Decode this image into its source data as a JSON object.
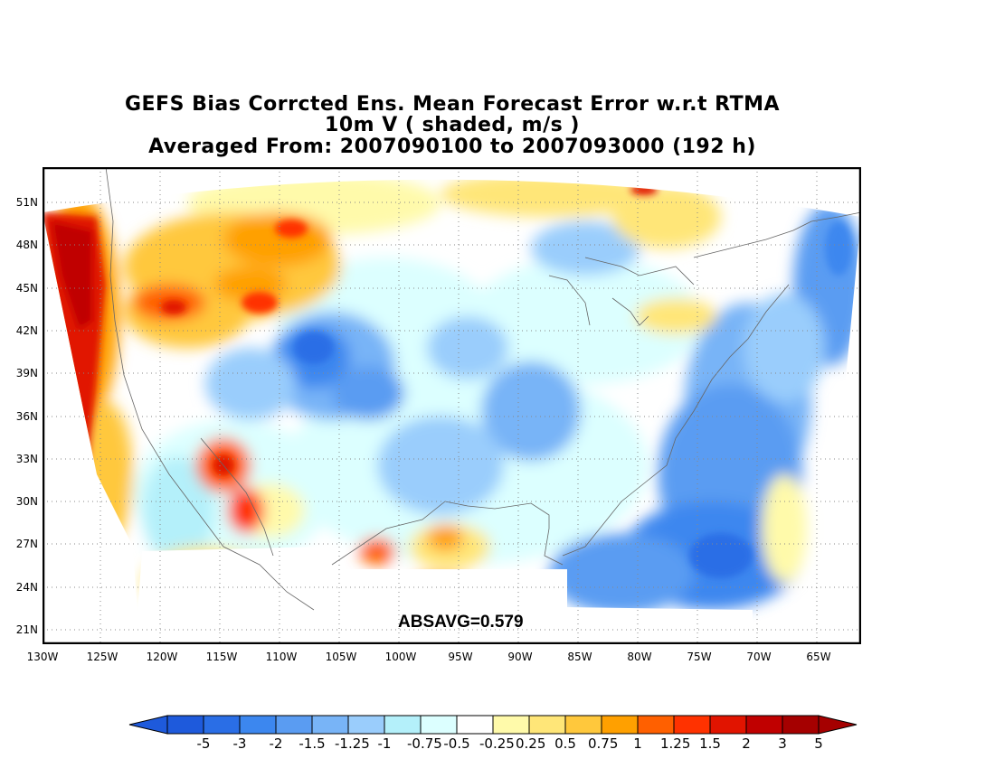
{
  "title": {
    "line1": "GEFS Bias Corrcted Ens. Mean Forecast Error w.r.t RTMA",
    "line2": "10m V ( shaded, m/s )",
    "line3": "Averaged From: 2007090100 to 2007093000 (192 h)"
  },
  "annotation": "ABSAVG=0.579",
  "lat_ticks": [
    "51N",
    "48N",
    "45N",
    "42N",
    "39N",
    "36N",
    "33N",
    "30N",
    "27N",
    "24N",
    "21N"
  ],
  "lon_ticks": [
    "130W",
    "125W",
    "120W",
    "115W",
    "110W",
    "105W",
    "100W",
    "95W",
    "90W",
    "85W",
    "80W",
    "75W",
    "70W",
    "65W"
  ],
  "colorbar": {
    "labels": [
      "-5",
      "-3",
      "-2",
      "-1.5",
      "-1.25",
      "-1",
      "-0.75",
      "-0.5",
      "-0.25",
      "0.25",
      "0.5",
      "0.75",
      "1",
      "1.25",
      "1.5",
      "2",
      "3",
      "5"
    ],
    "colors": [
      "#1e5adc",
      "#2a6ee6",
      "#3c87ef",
      "#5a9cf2",
      "#78b4f7",
      "#9acdfc",
      "#b4f0fa",
      "#dcffff",
      "#ffffff",
      "#fffaaa",
      "#ffe678",
      "#ffc83c",
      "#ffa000",
      "#ff6000",
      "#ff3200",
      "#e11400",
      "#c00000",
      "#a50000"
    ],
    "under_color": "#1e5adc",
    "over_color": "#a50000"
  },
  "grid": "dotted"
}
